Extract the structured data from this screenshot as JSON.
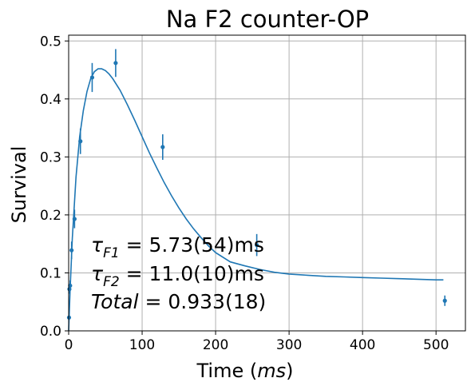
{
  "chart_data": {
    "type": "scatter",
    "title": "Na F2 counter-OP",
    "xlabel_prefix": "Time (",
    "xlabel_unit": "ms",
    "xlabel_suffix": ")",
    "ylabel": "Survival",
    "xlim": [
      0,
      540
    ],
    "ylim": [
      0,
      0.51
    ],
    "x_ticks": [
      0,
      100,
      200,
      300,
      400,
      500
    ],
    "y_ticks": [
      0.0,
      0.1,
      0.2,
      0.3,
      0.4,
      0.5
    ],
    "grid": true,
    "colors": {
      "series": "#1f77b4",
      "grid": "#b0b0b0"
    },
    "points": [
      {
        "x": 0.5,
        "y": 0.023,
        "err": 0.004
      },
      {
        "x": 1,
        "y": 0.072,
        "err": 0.008
      },
      {
        "x": 2,
        "y": 0.078,
        "err": 0.009
      },
      {
        "x": 4,
        "y": 0.139,
        "err": 0.015
      },
      {
        "x": 8,
        "y": 0.193,
        "err": 0.016
      },
      {
        "x": 16,
        "y": 0.327,
        "err": 0.022
      },
      {
        "x": 32,
        "y": 0.437,
        "err": 0.025
      },
      {
        "x": 64,
        "y": 0.462,
        "err": 0.024
      },
      {
        "x": 128,
        "y": 0.317,
        "err": 0.022
      },
      {
        "x": 256,
        "y": 0.148,
        "err": 0.019
      },
      {
        "x": 512,
        "y": 0.052,
        "err": 0.009
      }
    ],
    "fit": {
      "x": [
        0,
        2,
        5,
        10,
        15,
        20,
        25,
        30,
        35,
        40,
        45,
        50,
        55,
        60,
        70,
        80,
        90,
        100,
        110,
        120,
        130,
        140,
        150,
        160,
        170,
        180,
        190,
        200,
        220,
        240,
        260,
        280,
        300,
        325,
        350,
        375,
        400,
        425,
        450,
        475,
        500,
        510
      ],
      "y": [
        0.0,
        0.07,
        0.16,
        0.265,
        0.335,
        0.38,
        0.413,
        0.435,
        0.447,
        0.452,
        0.452,
        0.449,
        0.443,
        0.435,
        0.415,
        0.39,
        0.363,
        0.335,
        0.307,
        0.281,
        0.256,
        0.233,
        0.212,
        0.193,
        0.176,
        0.161,
        0.147,
        0.135,
        0.119,
        0.112,
        0.106,
        0.101,
        0.098,
        0.096,
        0.094,
        0.093,
        0.092,
        0.091,
        0.09,
        0.089,
        0.088,
        0.088
      ]
    },
    "annotations": {
      "line1": {
        "lhs_sym": "τ",
        "lhs_sub": "F1",
        "rhs": " = 5.73(54)ms"
      },
      "line2": {
        "lhs_sym": "τ",
        "lhs_sub": "F2",
        "rhs": " = 11.0(10)ms"
      },
      "line3": {
        "lhs_sym": "Total",
        "lhs_sub": "",
        "rhs": " = 0.933(18)"
      }
    }
  }
}
